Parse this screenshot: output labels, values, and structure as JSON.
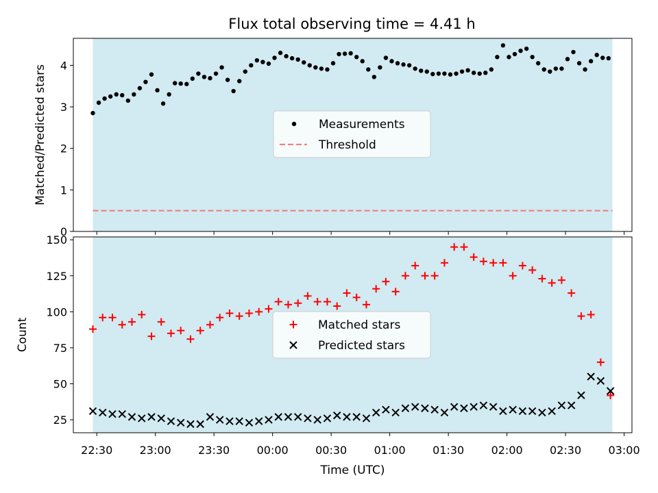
{
  "title": "Flux total observing time = 4.41 h",
  "chart_data": [
    {
      "type": "scatter",
      "ylabel": "Matched/Predicted stars",
      "ylim": [
        0,
        4.65
      ],
      "yticks": [
        0,
        1,
        2,
        3,
        4
      ],
      "shaded_span": [
        "22:28",
        "02:54"
      ],
      "shade_color": "#add8e6",
      "legend": {
        "placement": "center"
      },
      "threshold": {
        "name": "Threshold",
        "value": 0.5,
        "color": "#f08080",
        "style": "dashed"
      },
      "series": [
        {
          "name": "Measurements",
          "marker": "dot",
          "color": "#000000",
          "x": [
            "22:28",
            "22:31",
            "22:34",
            "22:37",
            "22:40",
            "22:43",
            "22:46",
            "22:49",
            "22:52",
            "22:55",
            "22:58",
            "23:01",
            "23:04",
            "23:07",
            "23:10",
            "23:13",
            "23:16",
            "23:19",
            "23:22",
            "23:25",
            "23:28",
            "23:31",
            "23:34",
            "23:37",
            "23:40",
            "23:43",
            "23:46",
            "23:49",
            "23:52",
            "23:55",
            "23:58",
            "00:01",
            "00:04",
            "00:07",
            "00:10",
            "00:13",
            "00:16",
            "00:19",
            "00:22",
            "00:25",
            "00:28",
            "00:31",
            "00:34",
            "00:37",
            "00:40",
            "00:43",
            "00:46",
            "00:49",
            "00:52",
            "00:55",
            "00:58",
            "01:01",
            "01:04",
            "01:07",
            "01:10",
            "01:13",
            "01:16",
            "01:19",
            "01:22",
            "01:25",
            "01:28",
            "01:31",
            "01:34",
            "01:37",
            "01:40",
            "01:43",
            "01:46",
            "01:49",
            "01:52",
            "01:55",
            "01:58",
            "02:01",
            "02:04",
            "02:07",
            "02:10",
            "02:13",
            "02:16",
            "02:19",
            "02:22",
            "02:25",
            "02:28",
            "02:31",
            "02:34",
            "02:37",
            "02:40",
            "02:43",
            "02:46",
            "02:49",
            "02:52"
          ],
          "y": [
            2.85,
            3.1,
            3.2,
            3.25,
            3.3,
            3.28,
            3.15,
            3.3,
            3.45,
            3.6,
            3.78,
            3.4,
            3.08,
            3.3,
            3.57,
            3.56,
            3.55,
            3.68,
            3.8,
            3.72,
            3.69,
            3.8,
            3.95,
            3.65,
            3.38,
            3.62,
            3.85,
            4.0,
            4.12,
            4.08,
            4.04,
            4.18,
            4.3,
            4.22,
            4.17,
            4.14,
            4.07,
            4.0,
            3.95,
            3.92,
            3.9,
            4.05,
            4.27,
            4.28,
            4.29,
            4.2,
            4.1,
            3.9,
            3.72,
            3.95,
            4.18,
            4.1,
            4.05,
            4.02,
            4.0,
            3.92,
            3.87,
            3.85,
            3.79,
            3.8,
            3.8,
            3.78,
            3.8,
            3.85,
            3.88,
            3.82,
            3.8,
            3.82,
            3.9,
            4.2,
            4.48,
            4.2,
            4.27,
            4.35,
            4.4,
            4.2,
            4.05,
            3.9,
            3.85,
            3.92,
            3.92,
            4.15,
            4.32,
            4.05,
            3.9,
            4.1,
            4.25,
            4.18,
            4.17
          ]
        }
      ]
    },
    {
      "type": "scatter",
      "xlabel": "Time (UTC)",
      "ylabel": "Count",
      "ylim": [
        16,
        152
      ],
      "yticks": [
        25,
        50,
        75,
        100,
        125,
        150
      ],
      "xticks": [
        "22:30",
        "23:00",
        "23:30",
        "00:00",
        "00:30",
        "01:00",
        "01:30",
        "02:00",
        "02:30",
        "03:00"
      ],
      "shaded_span": [
        "22:28",
        "02:54"
      ],
      "shade_color": "#add8e6",
      "legend": {
        "placement": "center"
      },
      "series": [
        {
          "name": "Matched stars",
          "marker": "plus",
          "color": "#ff0000",
          "x": [
            "22:28",
            "22:33",
            "22:38",
            "22:43",
            "22:48",
            "22:53",
            "22:58",
            "23:03",
            "23:08",
            "23:13",
            "23:18",
            "23:23",
            "23:28",
            "23:33",
            "23:38",
            "23:43",
            "23:48",
            "23:53",
            "23:58",
            "00:03",
            "00:08",
            "00:13",
            "00:18",
            "00:23",
            "00:28",
            "00:33",
            "00:38",
            "00:43",
            "00:48",
            "00:53",
            "00:58",
            "01:03",
            "01:08",
            "01:13",
            "01:18",
            "01:23",
            "01:28",
            "01:33",
            "01:38",
            "01:43",
            "01:48",
            "01:53",
            "01:58",
            "02:03",
            "02:08",
            "02:13",
            "02:18",
            "02:23",
            "02:28",
            "02:33",
            "02:38",
            "02:43",
            "02:48",
            "02:53"
          ],
          "y": [
            88,
            96,
            96,
            91,
            93,
            98,
            83,
            93,
            85,
            87,
            81,
            87,
            91,
            96,
            99,
            97,
            99,
            100,
            102,
            107,
            105,
            106,
            111,
            107,
            107,
            104,
            113,
            110,
            105,
            116,
            121,
            114,
            125,
            132,
            125,
            125,
            134,
            145,
            145,
            138,
            135,
            134,
            134,
            125,
            132,
            129,
            123,
            120,
            122,
            113,
            97,
            98,
            65,
            42
          ]
        },
        {
          "name": "Predicted stars",
          "marker": "x",
          "color": "#000000",
          "x": [
            "22:28",
            "22:33",
            "22:38",
            "22:43",
            "22:48",
            "22:53",
            "22:58",
            "23:03",
            "23:08",
            "23:13",
            "23:18",
            "23:23",
            "23:28",
            "23:33",
            "23:38",
            "23:43",
            "23:48",
            "23:53",
            "23:58",
            "00:03",
            "00:08",
            "00:13",
            "00:18",
            "00:23",
            "00:28",
            "00:33",
            "00:38",
            "00:43",
            "00:48",
            "00:53",
            "00:58",
            "01:03",
            "01:08",
            "01:13",
            "01:18",
            "01:23",
            "01:28",
            "01:33",
            "01:38",
            "01:43",
            "01:48",
            "01:53",
            "01:58",
            "02:03",
            "02:08",
            "02:13",
            "02:18",
            "02:23",
            "02:28",
            "02:33",
            "02:38",
            "02:43",
            "02:48",
            "02:53"
          ],
          "y": [
            31,
            30,
            29,
            29,
            27,
            26,
            27,
            26,
            24,
            23,
            22,
            22,
            27,
            25,
            24,
            24,
            23,
            24,
            25,
            27,
            27,
            27,
            26,
            25,
            26,
            28,
            27,
            27,
            26,
            30,
            32,
            30,
            33,
            34,
            33,
            32,
            30,
            34,
            33,
            34,
            35,
            34,
            31,
            32,
            31,
            31,
            30,
            31,
            35,
            35,
            42,
            55,
            52,
            45
          ]
        }
      ]
    }
  ]
}
